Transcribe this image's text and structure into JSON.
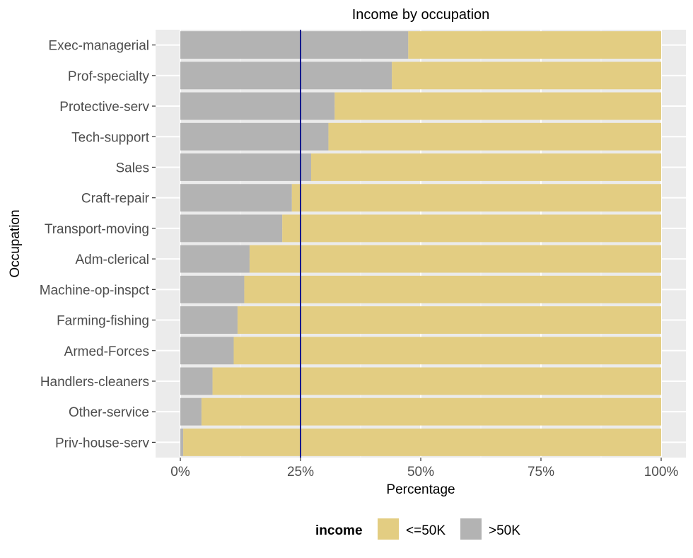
{
  "chart_data": {
    "type": "bar",
    "orientation": "horizontal",
    "stacked": "percent",
    "title": "Income by occupation",
    "xlabel": "Percentage",
    "ylabel": "Occupation",
    "xlim": [
      0,
      1
    ],
    "x_ticks": [
      0,
      0.25,
      0.5,
      0.75,
      1.0
    ],
    "x_tick_labels": [
      "0%",
      "25%",
      "50%",
      "75%",
      "100%"
    ],
    "categories": [
      "Exec-managerial",
      "Prof-specialty",
      "Protective-serv",
      "Tech-support",
      "Sales",
      "Craft-repair",
      "Transport-moving",
      "Adm-clerical",
      "Machine-op-inspct",
      "Farming-fishing",
      "Armed-Forces",
      "Handlers-cleaners",
      "Other-service",
      "Priv-house-serv"
    ],
    "series": [
      {
        "name": ">50K",
        "color": "#b3b3b3",
        "values": [
          0.474,
          0.44,
          0.321,
          0.308,
          0.272,
          0.232,
          0.212,
          0.144,
          0.133,
          0.119,
          0.111,
          0.067,
          0.044,
          0.006
        ]
      },
      {
        "name": "<=50K",
        "color": "#e3cd82",
        "values": [
          0.526,
          0.56,
          0.679,
          0.692,
          0.728,
          0.768,
          0.788,
          0.856,
          0.867,
          0.881,
          0.889,
          0.933,
          0.956,
          0.994
        ]
      }
    ],
    "reference_line": {
      "x": 0.25,
      "color": "#0a1a8c"
    },
    "grid": true,
    "legend": {
      "title": "income",
      "position": "bottom",
      "entries": [
        {
          "label": "<=50K",
          "color": "#e3cd82"
        },
        {
          "label": ">50K",
          "color": "#b3b3b3"
        }
      ]
    },
    "colors": {
      "panel_background": "#ebebeb",
      "grid_major": "#ffffff",
      "grid_minor": "#f5f5f5",
      "text": "#000000",
      "tick_text": "#4d4d4d",
      "tick_mark": "#333333"
    }
  }
}
